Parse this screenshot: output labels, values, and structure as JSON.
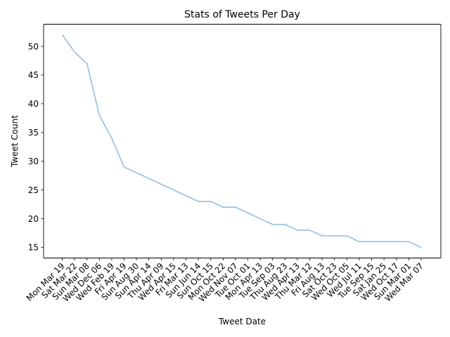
{
  "chart_data": {
    "type": "line",
    "title": "Stats of Tweets Per Day",
    "xlabel": "Tweet Date",
    "ylabel": "Tweet Count",
    "categories": [
      "Mon Mar 19",
      "Sat Mar 22",
      "Sun Mar 08",
      "Wed Dec 06",
      "Wed Feb 19",
      "Fri Apr 19",
      "Sun Aug 30",
      "Sun Apr 14",
      "Thu Apr 09",
      "Wed Apr 15",
      "Fri Mar 13",
      "Sun Jun 14",
      "Sun Oct 15",
      "Mon Oct 22",
      "Wed Nov 07",
      "Tue Oct 01",
      "Mon Apr 13",
      "Tue Sep 03",
      "Thu Aug 23",
      "Wed Apr 13",
      "Thu Mar 12",
      "Fri Aug 13",
      "Sat Oct 23",
      "Wed Oct 05",
      "Wed Jul 11",
      "Tue Sep 15",
      "Sat Jan 25",
      "Wed Oct 17",
      "Sun Mar 01",
      "Wed Mar 07"
    ],
    "values": [
      52,
      49,
      47,
      38,
      34,
      29,
      28,
      27,
      26,
      25,
      24,
      23,
      23,
      22,
      22,
      21,
      20,
      19,
      19,
      18,
      18,
      17,
      17,
      17,
      16,
      16,
      16,
      16,
      16,
      15
    ],
    "yticks": [
      15,
      20,
      25,
      30,
      35,
      40,
      45,
      50
    ],
    "ylim": [
      13.15,
      53.85
    ],
    "line_color": "#91bfe0",
    "grid": false,
    "legend": "none"
  }
}
